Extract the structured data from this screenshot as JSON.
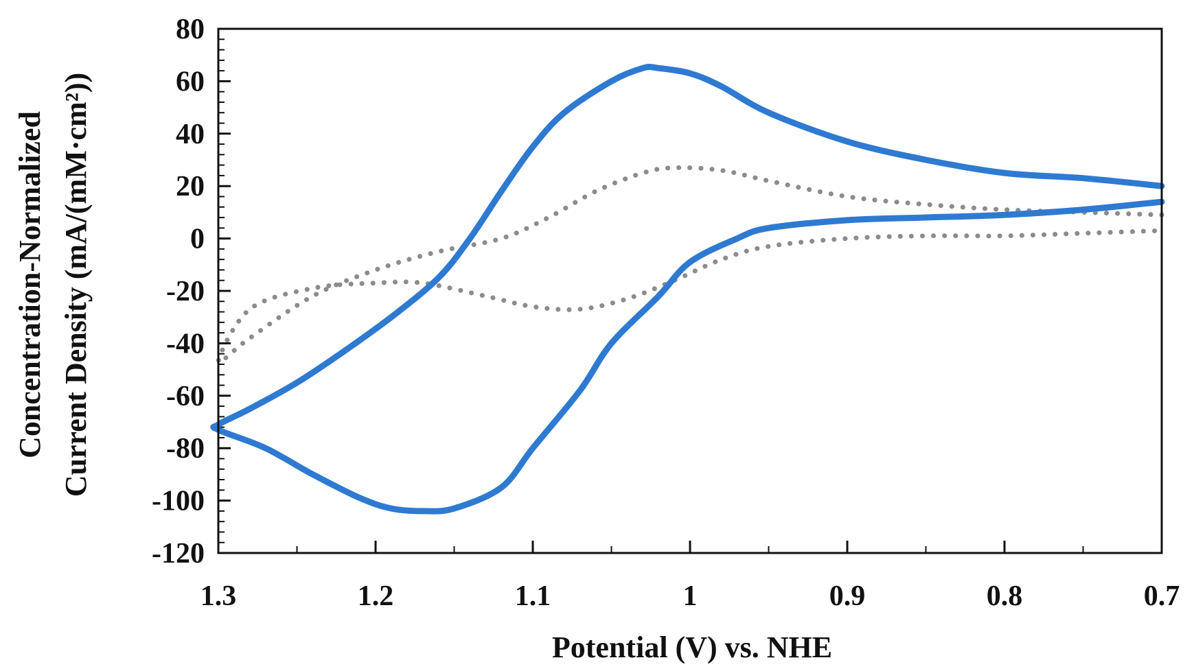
{
  "chart_data": {
    "type": "line",
    "title": "",
    "xlabel": "Potential (V) vs. NHE",
    "ylabel_line1": "Concentration-Normalized",
    "ylabel_line2": "Current Density (mA/(mM·cm²))",
    "xlim": [
      1.3,
      0.7
    ],
    "ylim": [
      -120,
      80
    ],
    "x_reversed": true,
    "grid": false,
    "legend": "none",
    "x_ticks": [
      "1.3",
      "1.2",
      "1.1",
      "1",
      "0.9",
      "0.8",
      "0.7"
    ],
    "x_tick_values": [
      1.3,
      1.2,
      1.1,
      1.0,
      0.9,
      0.8,
      0.7
    ],
    "y_ticks": [
      "80",
      "60",
      "40",
      "20",
      "0",
      "-20",
      "-40",
      "-60",
      "-80",
      "-100",
      "-120"
    ],
    "y_tick_values": [
      80,
      60,
      40,
      20,
      0,
      -20,
      -40,
      -60,
      -80,
      -100,
      -120
    ],
    "series": [
      {
        "color": "#2f7ad1",
        "style": "solid",
        "points": [
          [
            0.7,
            20
          ],
          [
            0.75,
            23
          ],
          [
            0.8,
            25
          ],
          [
            0.85,
            30
          ],
          [
            0.9,
            37
          ],
          [
            0.95,
            48
          ],
          [
            0.98,
            58
          ],
          [
            1.0,
            63
          ],
          [
            1.02,
            65
          ],
          [
            1.03,
            65
          ],
          [
            1.05,
            60
          ],
          [
            1.08,
            48
          ],
          [
            1.1,
            35
          ],
          [
            1.12,
            18
          ],
          [
            1.14,
            0
          ],
          [
            1.16,
            -15
          ],
          [
            1.19,
            -30
          ],
          [
            1.22,
            -43
          ],
          [
            1.25,
            -55
          ],
          [
            1.28,
            -65
          ],
          [
            1.3,
            -71
          ],
          [
            1.3,
            -73
          ],
          [
            1.27,
            -80
          ],
          [
            1.24,
            -90
          ],
          [
            1.21,
            -99
          ],
          [
            1.19,
            -103
          ],
          [
            1.17,
            -104
          ],
          [
            1.15,
            -103
          ],
          [
            1.12,
            -95
          ],
          [
            1.1,
            -80
          ],
          [
            1.07,
            -58
          ],
          [
            1.05,
            -40
          ],
          [
            1.02,
            -22
          ],
          [
            1.0,
            -9
          ],
          [
            0.97,
            0
          ],
          [
            0.95,
            4
          ],
          [
            0.9,
            7
          ],
          [
            0.85,
            8
          ],
          [
            0.8,
            9
          ],
          [
            0.75,
            11
          ],
          [
            0.7,
            14
          ]
        ]
      },
      {
        "color": "#8c8c8c",
        "style": "dotted",
        "points": [
          [
            0.7,
            9
          ],
          [
            0.75,
            10
          ],
          [
            0.8,
            11
          ],
          [
            0.85,
            13
          ],
          [
            0.9,
            16
          ],
          [
            0.95,
            22
          ],
          [
            0.98,
            26
          ],
          [
            1.01,
            27
          ],
          [
            1.03,
            25
          ],
          [
            1.06,
            18
          ],
          [
            1.09,
            8
          ],
          [
            1.12,
            0
          ],
          [
            1.16,
            -5
          ],
          [
            1.2,
            -12
          ],
          [
            1.24,
            -22
          ],
          [
            1.28,
            -38
          ],
          [
            1.3,
            -47
          ],
          [
            1.28,
            -27
          ],
          [
            1.24,
            -19
          ],
          [
            1.2,
            -17
          ],
          [
            1.17,
            -17
          ],
          [
            1.13,
            -22
          ],
          [
            1.1,
            -26
          ],
          [
            1.07,
            -27
          ],
          [
            1.04,
            -23
          ],
          [
            1.01,
            -16
          ],
          [
            0.98,
            -8
          ],
          [
            0.95,
            -3
          ],
          [
            0.9,
            0
          ],
          [
            0.85,
            1
          ],
          [
            0.8,
            1
          ],
          [
            0.75,
            2
          ],
          [
            0.7,
            3
          ]
        ]
      }
    ]
  }
}
